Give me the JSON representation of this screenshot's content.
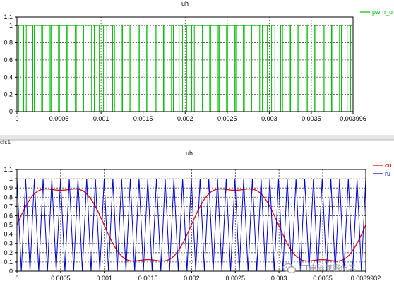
{
  "panel_tab_label": "ch:1",
  "watermark": {
    "icon": "wechat-icon",
    "text": "CT电磁兼容仿真"
  },
  "chart_data": [
    {
      "type": "line",
      "title": "uh",
      "ylim": [
        0,
        1
      ],
      "xlim": [
        0,
        0.003996
      ],
      "y_ticks": [
        "0",
        "0.2",
        "0.4",
        "0.6",
        "0.8",
        "1",
        "1.1"
      ],
      "x_ticks": [
        "0",
        "0.0005",
        "0.001",
        "0.0015",
        "0.002",
        "0.0025",
        "0.003",
        "0.0035",
        "0.003996"
      ],
      "grid": true,
      "legend_position": "right",
      "series": [
        {
          "name": "pwm_u",
          "color": "#00bb00",
          "kind": "pwm",
          "carrier_periods": 40,
          "duty_cycle": {
            "offset": 0.5,
            "amplitude": 0.45,
            "harmonic3_amplitude": 0.075,
            "periods": 2
          }
        }
      ]
    },
    {
      "type": "line",
      "title": "uh",
      "ylim": [
        0,
        1
      ],
      "xlim": [
        0,
        0.0039932
      ],
      "y_ticks": [
        "0",
        "0.1",
        "0.2",
        "0.3",
        "0.4",
        "0.5",
        "0.6",
        "0.7",
        "0.8",
        "0.9",
        "1",
        "1.1"
      ],
      "x_ticks": [
        "0",
        "0.0005",
        "0.001",
        "0.0015",
        "0.002",
        "0.0025",
        "0.003",
        "0.0035",
        "0.0039932"
      ],
      "grid": true,
      "legend_position": "right",
      "series": [
        {
          "name": "cu",
          "color": "#ee0000",
          "kind": "saddle_wave",
          "offset": 0.5,
          "amplitude": 0.45,
          "harmonic3_amplitude": 0.075,
          "periods": 2
        },
        {
          "name": "ru",
          "color": "#0000cc",
          "kind": "triangle",
          "amplitude_min": 0,
          "amplitude_max": 1,
          "carrier_periods": 40
        }
      ]
    }
  ]
}
